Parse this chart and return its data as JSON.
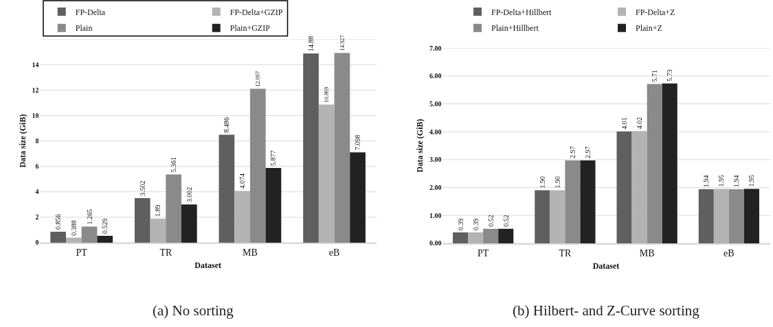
{
  "chart_data": [
    {
      "type": "bar",
      "title": "(a) No sorting",
      "xlabel": "Dataset",
      "ylabel": "Data size (GiB)",
      "categories": [
        "PT",
        "TR",
        "MB",
        "eB"
      ],
      "series": [
        {
          "name": "FP-Delta",
          "color": "#5f5f5f",
          "values": [
            0.856,
            3.502,
            8.486,
            14.88
          ],
          "value_labels": [
            "0.856",
            "3.502",
            "8.486",
            "14.88"
          ]
        },
        {
          "name": "FP-Delta+GZIP",
          "color": "#b3b3b3",
          "values": [
            0.388,
            1.89,
            4.074,
            10.869
          ],
          "value_labels": [
            "0.388",
            "1.89",
            "4.074",
            "10.869"
          ]
        },
        {
          "name": "Plain",
          "color": "#8a8a8a",
          "values": [
            1.265,
            5.361,
            12.097,
            14.927
          ],
          "value_labels": [
            "1.265",
            "5.361",
            "12.097",
            "14.927"
          ]
        },
        {
          "name": "Plain+GZIP",
          "color": "#222222",
          "values": [
            0.529,
            3.002,
            5.877,
            7.098
          ],
          "value_labels": [
            "0.529",
            "3.002",
            "5.877",
            "7.098"
          ]
        }
      ],
      "ylim": [
        0,
        16
      ],
      "yticks": [
        0,
        2,
        4,
        6,
        8,
        10,
        12,
        14,
        {
          "value": 16,
          "label": null
        }
      ],
      "grid": "y",
      "legend": "top left"
    },
    {
      "type": "bar",
      "title": "(b) Hilbert- and Z-Curve sorting",
      "xlabel": "Dataset",
      "ylabel": "Data size (GiB)",
      "categories": [
        "PT",
        "TR",
        "MB",
        "eB"
      ],
      "series": [
        {
          "name": "FP-Delta+Hillbert",
          "color": "#5f5f5f",
          "values": [
            0.39,
            1.9,
            4.01,
            1.94
          ],
          "value_labels": [
            "0.39",
            "1.90",
            "4.01",
            "1.94"
          ]
        },
        {
          "name": "FP-Delta+Z",
          "color": "#b3b3b3",
          "values": [
            0.39,
            1.9,
            4.02,
            1.95
          ],
          "value_labels": [
            "0.39",
            "1.90",
            "4.02",
            "1.95"
          ]
        },
        {
          "name": "Plain+Hillbert",
          "color": "#8a8a8a",
          "values": [
            0.52,
            2.97,
            5.71,
            1.94
          ],
          "value_labels": [
            "0.52",
            "2.97",
            "5.71",
            "1.94"
          ]
        },
        {
          "name": "Plain+Z",
          "color": "#222222",
          "values": [
            0.52,
            2.97,
            5.73,
            1.95
          ],
          "value_labels": [
            "0.52",
            "2.97",
            "5.73",
            "1.95"
          ]
        }
      ],
      "ylim": [
        0,
        7
      ],
      "yticks": [
        {
          "value": 0,
          "label": "0.00"
        },
        {
          "value": 1,
          "label": "1.00"
        },
        {
          "value": 2,
          "label": "2.00"
        },
        {
          "value": 3,
          "label": "3.00"
        },
        {
          "value": 4,
          "label": "4.00"
        },
        {
          "value": 5,
          "label": "5.00"
        },
        {
          "value": 6,
          "label": "6.00"
        },
        {
          "value": 7,
          "label": "7.00"
        }
      ],
      "grid": "y",
      "legend": "top"
    }
  ]
}
